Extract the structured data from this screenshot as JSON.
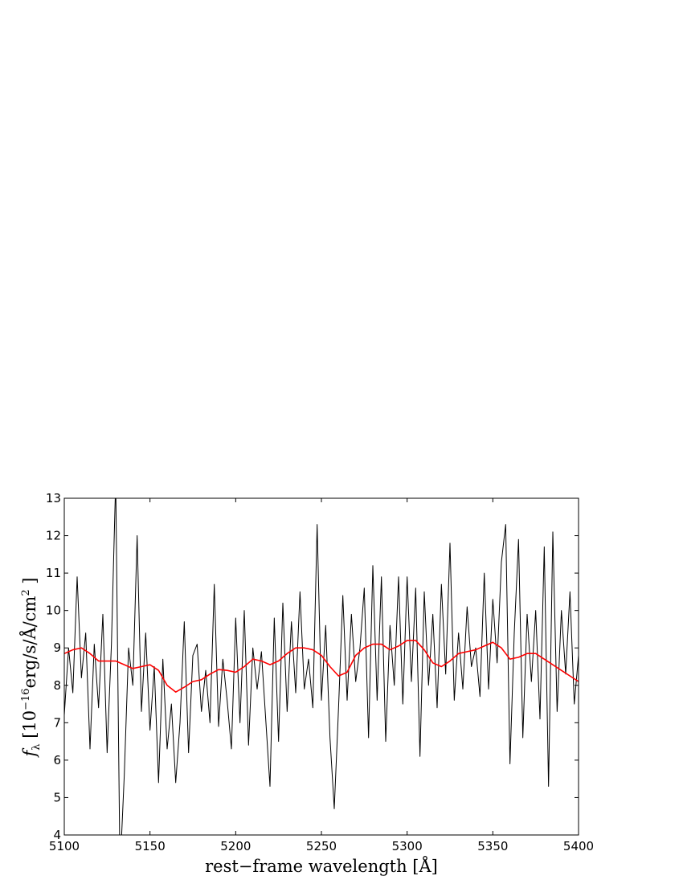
{
  "chart_data": {
    "type": "line",
    "xlabel": "rest−frame wavelength [Å]",
    "ylabel": [
      "f",
      "λ",
      " [10",
      "−16",
      "erg/s/Å/cm",
      "2",
      " ]"
    ],
    "xlim": [
      5100,
      5400
    ],
    "xticks": [
      5100,
      5150,
      5200,
      5250,
      5300,
      5350,
      5400
    ],
    "ylim": [
      4,
      13
    ],
    "yticks": [
      4,
      5,
      6,
      7,
      8,
      9,
      10,
      11,
      12,
      13
    ],
    "series": [
      {
        "color": "#000000",
        "x": [
          5100,
          5102.5,
          5105,
          5107.5,
          5110,
          5112.5,
          5115,
          5117.5,
          5120,
          5122.5,
          5125,
          5127.5,
          5130,
          5132.5,
          5135,
          5137.5,
          5140,
          5142.5,
          5145,
          5147.5,
          5150,
          5152.5,
          5155,
          5157.5,
          5160,
          5162.5,
          5165,
          5167.5,
          5170,
          5172.5,
          5175,
          5177.5,
          5180,
          5182.5,
          5185,
          5187.5,
          5190,
          5192.5,
          5195,
          5197.5,
          5200,
          5202.5,
          5205,
          5207.5,
          5210,
          5212.5,
          5215,
          5217.5,
          5220,
          5222.5,
          5225,
          5227.5,
          5230,
          5232.5,
          5235,
          5237.5,
          5240,
          5242.5,
          5245,
          5247.5,
          5250,
          5252.5,
          5255,
          5257.5,
          5260,
          5262.5,
          5265,
          5267.5,
          5270,
          5272.5,
          5275,
          5277.5,
          5280,
          5282.5,
          5285,
          5287.5,
          5290,
          5292.5,
          5295,
          5297.5,
          5300,
          5302.5,
          5305,
          5307.5,
          5310,
          5312.5,
          5315,
          5317.5,
          5320,
          5322.5,
          5325,
          5327.5,
          5330,
          5332.5,
          5335,
          5337.5,
          5340,
          5342.5,
          5345,
          5347.5,
          5350,
          5352.5,
          5355,
          5357.5,
          5360,
          5362.5,
          5365,
          5367.5,
          5370,
          5372.5,
          5375,
          5377.5,
          5380,
          5382.5,
          5385,
          5387.5,
          5390,
          5392.5,
          5395,
          5397.5,
          5400
        ],
        "values": [
          7.2,
          9.0,
          7.8,
          10.9,
          8.2,
          9.4,
          6.3,
          9.1,
          7.4,
          9.9,
          6.2,
          9.1,
          13.5,
          3.0,
          5.6,
          9.0,
          8.0,
          12.0,
          7.3,
          9.4,
          6.8,
          8.5,
          5.4,
          8.7,
          6.3,
          7.5,
          5.4,
          7.0,
          9.7,
          6.2,
          8.8,
          9.1,
          7.3,
          8.4,
          7.0,
          10.7,
          6.9,
          8.7,
          7.6,
          6.3,
          9.8,
          7.0,
          10.0,
          6.4,
          9.0,
          7.9,
          8.9,
          7.1,
          5.3,
          9.8,
          6.5,
          10.2,
          7.3,
          9.7,
          7.8,
          10.5,
          7.9,
          8.7,
          7.4,
          12.3,
          7.6,
          9.6,
          6.6,
          4.7,
          7.4,
          10.4,
          7.6,
          9.9,
          8.1,
          9.0,
          10.6,
          6.6,
          11.2,
          7.6,
          10.9,
          6.5,
          9.6,
          8.0,
          10.9,
          7.5,
          10.9,
          8.1,
          10.6,
          6.1,
          10.5,
          8.0,
          9.9,
          7.4,
          10.7,
          8.3,
          11.8,
          7.6,
          9.4,
          7.9,
          10.1,
          8.5,
          9.0,
          7.7,
          11.0,
          7.9,
          10.3,
          8.6,
          11.3,
          12.3,
          5.9,
          9.4,
          11.9,
          6.6,
          9.9,
          8.1,
          10.0,
          7.1,
          11.7,
          5.3,
          12.1,
          7.3,
          10.0,
          8.3,
          10.5,
          7.5,
          8.8
        ]
      },
      {
        "color": "#ff0000",
        "x": [
          5100,
          5105,
          5110,
          5115,
          5120,
          5125,
          5130,
          5135,
          5140,
          5145,
          5150,
          5155,
          5160,
          5165,
          5170,
          5175,
          5180,
          5185,
          5190,
          5195,
          5200,
          5205,
          5210,
          5215,
          5220,
          5225,
          5230,
          5235,
          5240,
          5245,
          5250,
          5255,
          5260,
          5265,
          5270,
          5275,
          5280,
          5285,
          5290,
          5295,
          5300,
          5305,
          5310,
          5315,
          5320,
          5325,
          5330,
          5335,
          5340,
          5345,
          5350,
          5355,
          5360,
          5365,
          5370,
          5375,
          5380,
          5385,
          5390,
          5395,
          5400
        ],
        "values": [
          8.85,
          8.95,
          9.0,
          8.85,
          8.65,
          8.65,
          8.65,
          8.55,
          8.45,
          8.5,
          8.55,
          8.4,
          8.0,
          7.82,
          7.95,
          8.1,
          8.15,
          8.3,
          8.42,
          8.4,
          8.35,
          8.5,
          8.7,
          8.65,
          8.55,
          8.65,
          8.85,
          9.0,
          9.0,
          8.95,
          8.8,
          8.5,
          8.25,
          8.35,
          8.8,
          9.0,
          9.1,
          9.1,
          8.95,
          9.05,
          9.2,
          9.2,
          8.95,
          8.6,
          8.5,
          8.65,
          8.85,
          8.9,
          8.95,
          9.05,
          9.15,
          9.0,
          8.7,
          8.75,
          8.85,
          8.85,
          8.7,
          8.55,
          8.4,
          8.25,
          8.1
        ]
      }
    ]
  }
}
